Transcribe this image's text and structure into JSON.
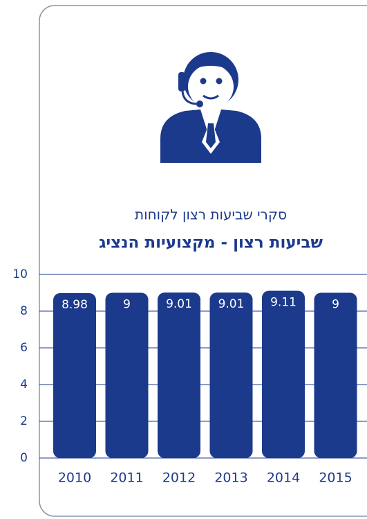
{
  "chart_data": {
    "type": "bar",
    "title": "שביעות רצון - מקצועיות הנציג",
    "subtitle": "סקרי שביעות רצון לקוחות",
    "categories": [
      "2010",
      "2011",
      "2012",
      "2013",
      "2014",
      "2015"
    ],
    "values": [
      8.98,
      9,
      9.01,
      9.01,
      9.11,
      9
    ],
    "color": "#1c3a8c",
    "ylim": [
      0,
      10
    ],
    "yticks": [
      0,
      2,
      4,
      6,
      8,
      10
    ],
    "grid": true
  }
}
